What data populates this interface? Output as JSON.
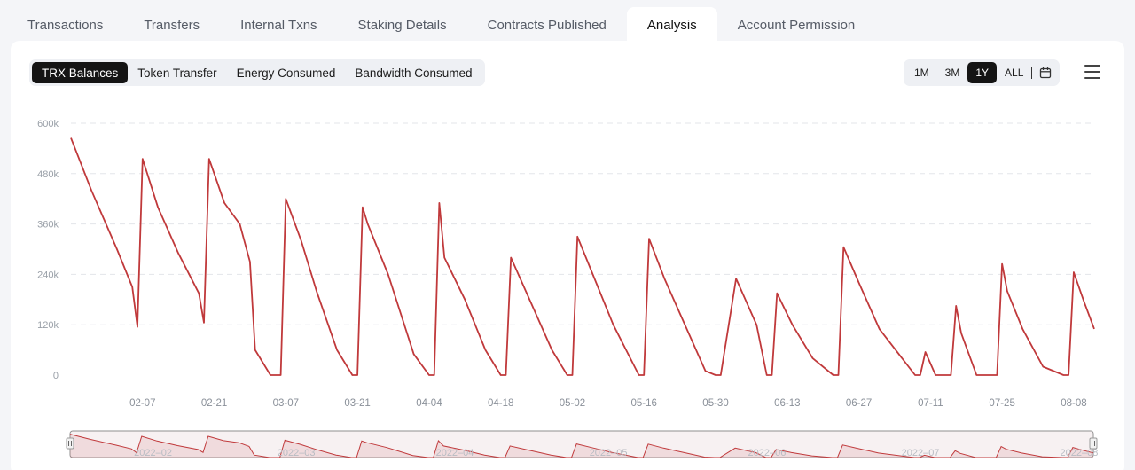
{
  "tabs": [
    {
      "label": "Transactions",
      "active": false
    },
    {
      "label": "Transfers",
      "active": false
    },
    {
      "label": "Internal Txns",
      "active": false
    },
    {
      "label": "Staking Details",
      "active": false
    },
    {
      "label": "Contracts Published",
      "active": false
    },
    {
      "label": "Analysis",
      "active": true
    },
    {
      "label": "Account Permission",
      "active": false
    }
  ],
  "metric_tabs": [
    {
      "label": "TRX Balances",
      "active": true
    },
    {
      "label": "Token Transfer",
      "active": false
    },
    {
      "label": "Energy Consumed",
      "active": false
    },
    {
      "label": "Bandwidth Consumed",
      "active": false
    }
  ],
  "range_options": [
    {
      "label": "1M",
      "active": false
    },
    {
      "label": "3M",
      "active": false
    },
    {
      "label": "1Y",
      "active": true
    },
    {
      "label": "ALL",
      "active": false
    }
  ],
  "icons": {
    "calendar": "calendar-icon",
    "menu": "hamburger-menu-icon",
    "handle": "slider-handle-icon"
  },
  "colors": {
    "line": "#c0393b",
    "grid": "#e3e5ea",
    "active_bg": "#141414"
  },
  "chart_data": {
    "type": "line",
    "title": "",
    "xlabel": "",
    "ylabel": "",
    "ylim": [
      0,
      600000
    ],
    "y_ticks": [
      "0",
      "120k",
      "240k",
      "360k",
      "480k",
      "600k"
    ],
    "y_tick_values": [
      0,
      120000,
      240000,
      360000,
      480000,
      600000
    ],
    "x_ticks": [
      "02-07",
      "02-21",
      "03-07",
      "03-21",
      "04-04",
      "04-18",
      "05-02",
      "05-16",
      "05-30",
      "06-13",
      "06-27",
      "07-11",
      "07-25",
      "08-08"
    ],
    "grid": true,
    "series": [
      {
        "x": [
          "2022-01-24",
          "2022-01-28",
          "2022-02-02",
          "2022-02-05",
          "2022-02-06",
          "2022-02-07",
          "2022-02-10",
          "2022-02-14",
          "2022-02-18",
          "2022-02-19",
          "2022-02-20",
          "2022-02-23",
          "2022-02-26",
          "2022-02-28",
          "2022-03-01",
          "2022-03-04",
          "2022-03-05",
          "2022-03-06",
          "2022-03-07",
          "2022-03-10",
          "2022-03-13",
          "2022-03-17",
          "2022-03-20",
          "2022-03-21",
          "2022-03-22",
          "2022-03-23",
          "2022-03-27",
          "2022-04-01",
          "2022-04-04",
          "2022-04-05",
          "2022-04-06",
          "2022-04-07",
          "2022-04-11",
          "2022-04-15",
          "2022-04-18",
          "2022-04-19",
          "2022-04-20",
          "2022-04-24",
          "2022-04-28",
          "2022-05-01",
          "2022-05-02",
          "2022-05-03",
          "2022-05-06",
          "2022-05-10",
          "2022-05-15",
          "2022-05-16",
          "2022-05-17",
          "2022-05-20",
          "2022-05-24",
          "2022-05-28",
          "2022-05-30",
          "2022-05-31",
          "2022-06-03",
          "2022-06-07",
          "2022-06-09",
          "2022-06-10",
          "2022-06-11",
          "2022-06-14",
          "2022-06-18",
          "2022-06-22",
          "2022-06-23",
          "2022-06-24",
          "2022-06-27",
          "2022-07-01",
          "2022-07-08",
          "2022-07-09",
          "2022-07-10",
          "2022-07-12",
          "2022-07-15",
          "2022-07-16",
          "2022-07-17",
          "2022-07-20",
          "2022-07-24",
          "2022-07-25",
          "2022-07-26",
          "2022-07-29",
          "2022-08-02",
          "2022-08-06",
          "2022-08-07",
          "2022-08-08",
          "2022-08-10",
          "2022-08-12"
        ],
        "values": [
          565000,
          440000,
          300000,
          210000,
          115000,
          515000,
          400000,
          290000,
          195000,
          125000,
          515000,
          410000,
          360000,
          270000,
          60000,
          0,
          0,
          0,
          420000,
          320000,
          200000,
          60000,
          0,
          0,
          400000,
          360000,
          240000,
          50000,
          0,
          0,
          410000,
          280000,
          180000,
          60000,
          0,
          0,
          280000,
          170000,
          60000,
          0,
          0,
          330000,
          240000,
          120000,
          0,
          0,
          325000,
          230000,
          120000,
          10000,
          0,
          0,
          230000,
          120000,
          0,
          0,
          195000,
          120000,
          40000,
          0,
          0,
          305000,
          220000,
          110000,
          0,
          0,
          55000,
          0,
          0,
          165000,
          100000,
          0,
          0,
          265000,
          200000,
          110000,
          20000,
          0,
          0,
          245000,
          175000,
          110000
        ]
      }
    ],
    "navigator_ticks": [
      "2022–02",
      "2022–03",
      "2022–04",
      "2022–05",
      "2022–06",
      "2022–07",
      "2022–08"
    ]
  }
}
